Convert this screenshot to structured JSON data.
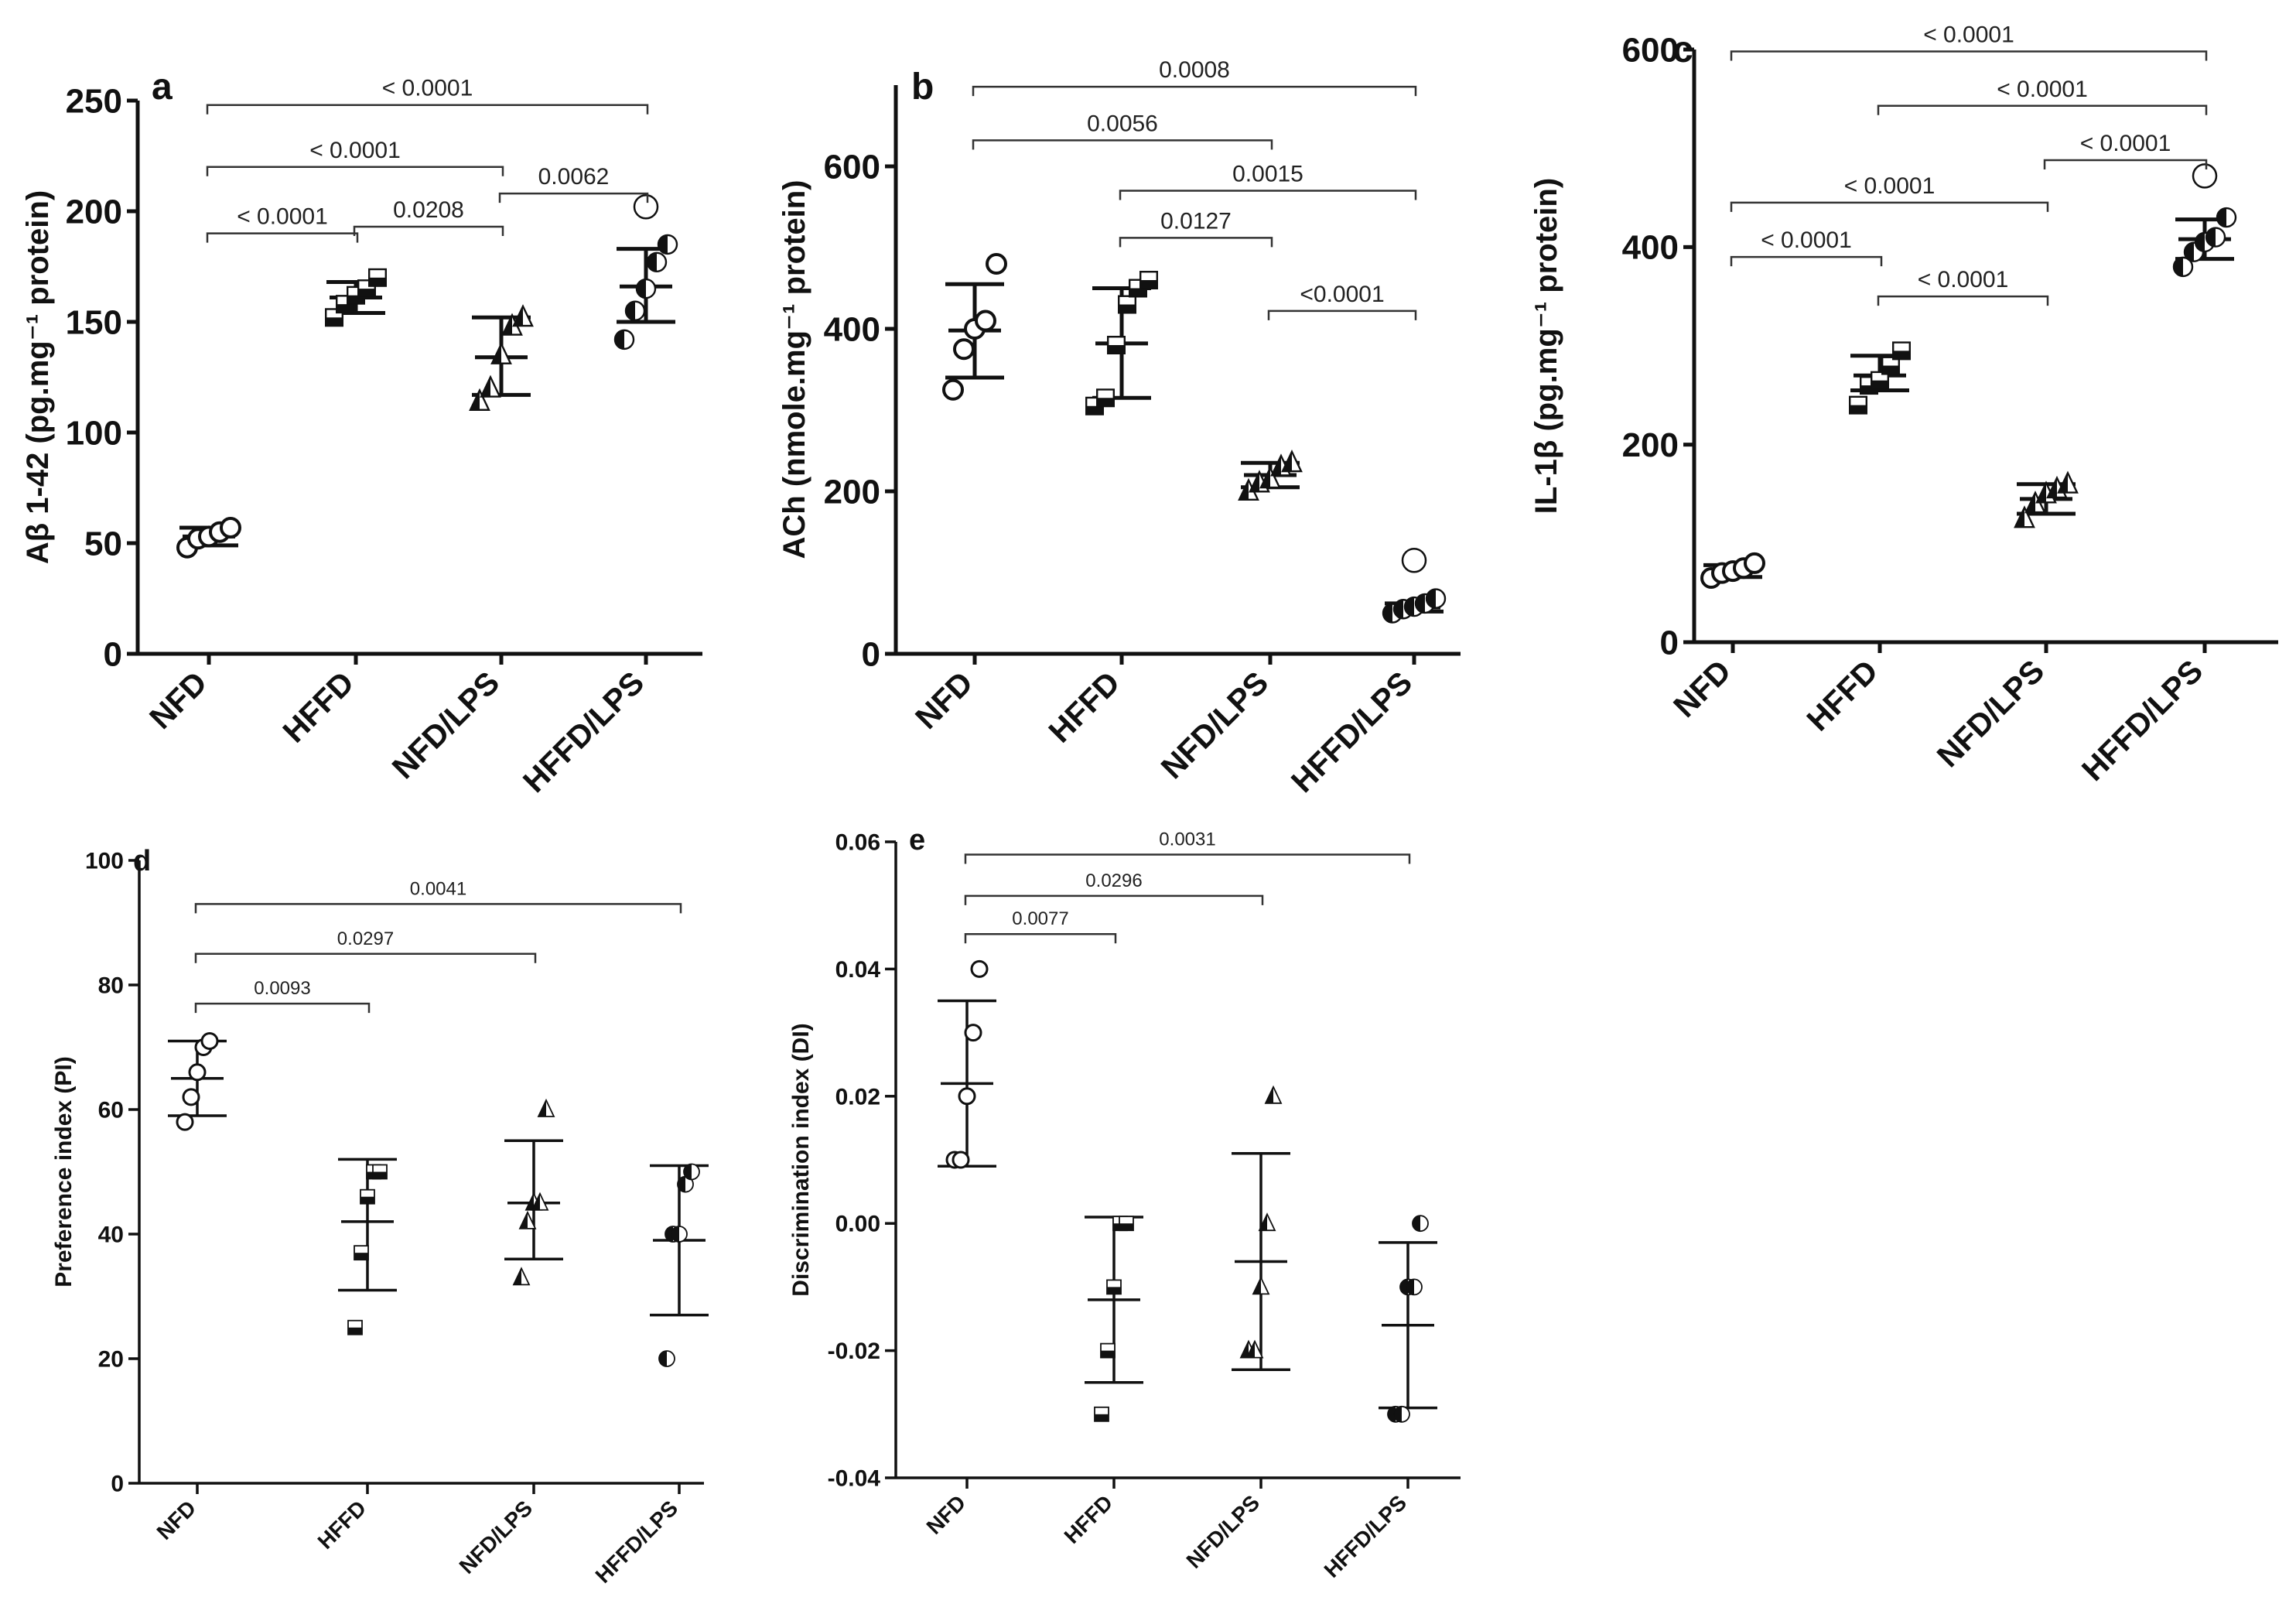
{
  "chart_data": [
    {
      "panel": "a",
      "type": "scatter",
      "ylabel": "Aβ 1-42 (pg.mg⁻¹ protein)",
      "ylim": [
        0,
        250
      ],
      "yticks": [
        0,
        50,
        100,
        150,
        200,
        250
      ],
      "categories": [
        "NFD",
        "HFFD",
        "NFD/LPS",
        "HFFD/LPS"
      ],
      "markers": [
        "circle",
        "square",
        "triangle",
        "half-circle"
      ],
      "series": [
        {
          "name": "NFD",
          "points": [
            48,
            52,
            53,
            55,
            57
          ],
          "mean": 53,
          "upper": 57,
          "lower": 49
        },
        {
          "name": "HFFD",
          "points": [
            152,
            158,
            162,
            165,
            170
          ],
          "mean": 161,
          "upper": 168,
          "lower": 154
        },
        {
          "name": "NFD/LPS",
          "points": [
            114,
            120,
            135,
            148,
            152
          ],
          "mean": 134,
          "upper": 152,
          "lower": 117
        },
        {
          "name": "HFFD/LPS",
          "points": [
            142,
            155,
            165,
            177,
            185,
            202
          ],
          "mean": 166,
          "upper": 183,
          "lower": 150,
          "outlier": 202
        }
      ],
      "comparisons": [
        {
          "from": 0,
          "to": 3,
          "label": "< 0.0001",
          "y": 248
        },
        {
          "from": 0,
          "to": 2,
          "label": "< 0.0001",
          "y": 220
        },
        {
          "from": 0,
          "to": 1,
          "label": "< 0.0001",
          "y": 190
        },
        {
          "from": 1,
          "to": 2,
          "label": "0.0208",
          "y": 193
        },
        {
          "from": 2,
          "to": 3,
          "label": "0.0062",
          "y": 208
        }
      ]
    },
    {
      "panel": "b",
      "type": "scatter",
      "ylabel": "ACh (nmole.mg⁻¹ protein)",
      "ylim": [
        0,
        700
      ],
      "yticks": [
        0,
        200,
        400,
        600
      ],
      "categories": [
        "NFD",
        "HFFD",
        "NFD/LPS",
        "HFFD/LPS"
      ],
      "markers": [
        "circle",
        "square",
        "triangle",
        "half-circle"
      ],
      "series": [
        {
          "name": "NFD",
          "points": [
            325,
            375,
            400,
            410,
            480
          ],
          "mean": 398,
          "upper": 455,
          "lower": 340
        },
        {
          "name": "HFFD",
          "points": [
            305,
            315,
            380,
            430,
            450,
            460
          ],
          "mean": 382,
          "upper": 450,
          "lower": 315
        },
        {
          "name": "NFD/LPS",
          "points": [
            200,
            210,
            215,
            230,
            235
          ],
          "mean": 220,
          "upper": 235,
          "lower": 205
        },
        {
          "name": "HFFD/LPS",
          "points": [
            50,
            55,
            58,
            62,
            68,
            115
          ],
          "mean": 57,
          "upper": 62,
          "lower": 52,
          "outlier": 115
        }
      ],
      "comparisons": [
        {
          "from": 0,
          "to": 3,
          "label": "0.0008",
          "y": 698
        },
        {
          "from": 0,
          "to": 2,
          "label": "0.0056",
          "y": 632
        },
        {
          "from": 1,
          "to": 3,
          "label": "0.0015",
          "y": 570
        },
        {
          "from": 1,
          "to": 2,
          "label": "0.0127",
          "y": 512
        },
        {
          "from": 2,
          "to": 3,
          "label": "<0.0001",
          "y": 422
        }
      ]
    },
    {
      "panel": "c",
      "type": "scatter",
      "ylabel": "IL-1β (pg.mg⁻¹ protein)",
      "ylim": [
        0,
        600
      ],
      "yticks": [
        0,
        200,
        400,
        600
      ],
      "categories": [
        "NFD",
        "HFFD",
        "NFD/LPS",
        "HFFD/LPS"
      ],
      "markers": [
        "circle",
        "square",
        "triangle",
        "half-circle"
      ],
      "series": [
        {
          "name": "NFD",
          "points": [
            65,
            70,
            72,
            75,
            80
          ],
          "mean": 72,
          "upper": 78,
          "lower": 66
        },
        {
          "name": "HFFD",
          "points": [
            240,
            260,
            265,
            280,
            295
          ],
          "mean": 270,
          "upper": 290,
          "lower": 255
        },
        {
          "name": "NFD/LPS",
          "points": [
            125,
            140,
            150,
            155,
            160
          ],
          "mean": 145,
          "upper": 160,
          "lower": 130
        },
        {
          "name": "HFFD/LPS",
          "points": [
            380,
            395,
            405,
            410,
            430,
            472
          ],
          "mean": 408,
          "upper": 428,
          "lower": 388,
          "outlier": 472
        }
      ],
      "comparisons": [
        {
          "from": 0,
          "to": 3,
          "label": "< 0.0001",
          "y": 598
        },
        {
          "from": 1,
          "to": 3,
          "label": "< 0.0001",
          "y": 543
        },
        {
          "from": 2,
          "to": 3,
          "label": "< 0.0001",
          "y": 488
        },
        {
          "from": 0,
          "to": 2,
          "label": "< 0.0001",
          "y": 445
        },
        {
          "from": 0,
          "to": 1,
          "label": "< 0.0001",
          "y": 390
        },
        {
          "from": 1,
          "to": 2,
          "label": "< 0.0001",
          "y": 350
        }
      ]
    },
    {
      "panel": "d",
      "type": "scatter",
      "ylabel": "Preference index (PI)",
      "ylim": [
        0,
        100
      ],
      "yticks": [
        0,
        20,
        40,
        60,
        80,
        100
      ],
      "categories": [
        "NFD",
        "HFFD",
        "NFD/LPS",
        "HFFD/LPS"
      ],
      "markers": [
        "circle",
        "square",
        "triangle",
        "half-circle"
      ],
      "series": [
        {
          "name": "NFD",
          "points": [
            58,
            62,
            66,
            70,
            71
          ],
          "mean": 65,
          "upper": 71,
          "lower": 59
        },
        {
          "name": "HFFD",
          "points": [
            25,
            37,
            46,
            50,
            50
          ],
          "mean": 42,
          "upper": 52,
          "lower": 31
        },
        {
          "name": "NFD/LPS",
          "points": [
            33,
            42,
            45,
            45,
            60
          ],
          "mean": 45,
          "upper": 55,
          "lower": 36
        },
        {
          "name": "HFFD/LPS",
          "points": [
            20,
            40,
            40,
            48,
            50
          ],
          "mean": 39,
          "upper": 51,
          "lower": 27
        }
      ],
      "comparisons": [
        {
          "from": 0,
          "to": 3,
          "label": "0.0041",
          "y": 93
        },
        {
          "from": 0,
          "to": 2,
          "label": "0.0297",
          "y": 85
        },
        {
          "from": 0,
          "to": 1,
          "label": "0.0093",
          "y": 77
        }
      ]
    },
    {
      "panel": "e",
      "type": "scatter",
      "ylabel": "Discrimination index (DI)",
      "ylim": [
        -0.04,
        0.06
      ],
      "yticks": [
        -0.04,
        -0.02,
        0.0,
        0.02,
        0.04,
        0.06
      ],
      "categories": [
        "NFD",
        "HFFD",
        "NFD/LPS",
        "HFFD/LPS"
      ],
      "markers": [
        "circle",
        "square",
        "triangle",
        "half-circle"
      ],
      "series": [
        {
          "name": "NFD",
          "points": [
            0.01,
            0.01,
            0.02,
            0.03,
            0.04
          ],
          "mean": 0.022,
          "upper": 0.035,
          "lower": 0.009
        },
        {
          "name": "HFFD",
          "points": [
            -0.03,
            -0.02,
            -0.01,
            0.0,
            0.0
          ],
          "mean": -0.012,
          "upper": 0.001,
          "lower": -0.025
        },
        {
          "name": "NFD/LPS",
          "points": [
            -0.02,
            -0.02,
            -0.01,
            0.0,
            0.02
          ],
          "mean": -0.006,
          "upper": 0.011,
          "lower": -0.023
        },
        {
          "name": "HFFD/LPS",
          "points": [
            -0.03,
            -0.03,
            -0.01,
            -0.01,
            0.0
          ],
          "mean": -0.016,
          "upper": -0.003,
          "lower": -0.029
        }
      ],
      "comparisons": [
        {
          "from": 0,
          "to": 3,
          "label": "0.0031",
          "y": 0.058
        },
        {
          "from": 0,
          "to": 2,
          "label": "0.0296",
          "y": 0.0515
        },
        {
          "from": 0,
          "to": 1,
          "label": "0.0077",
          "y": 0.0455
        }
      ]
    }
  ]
}
